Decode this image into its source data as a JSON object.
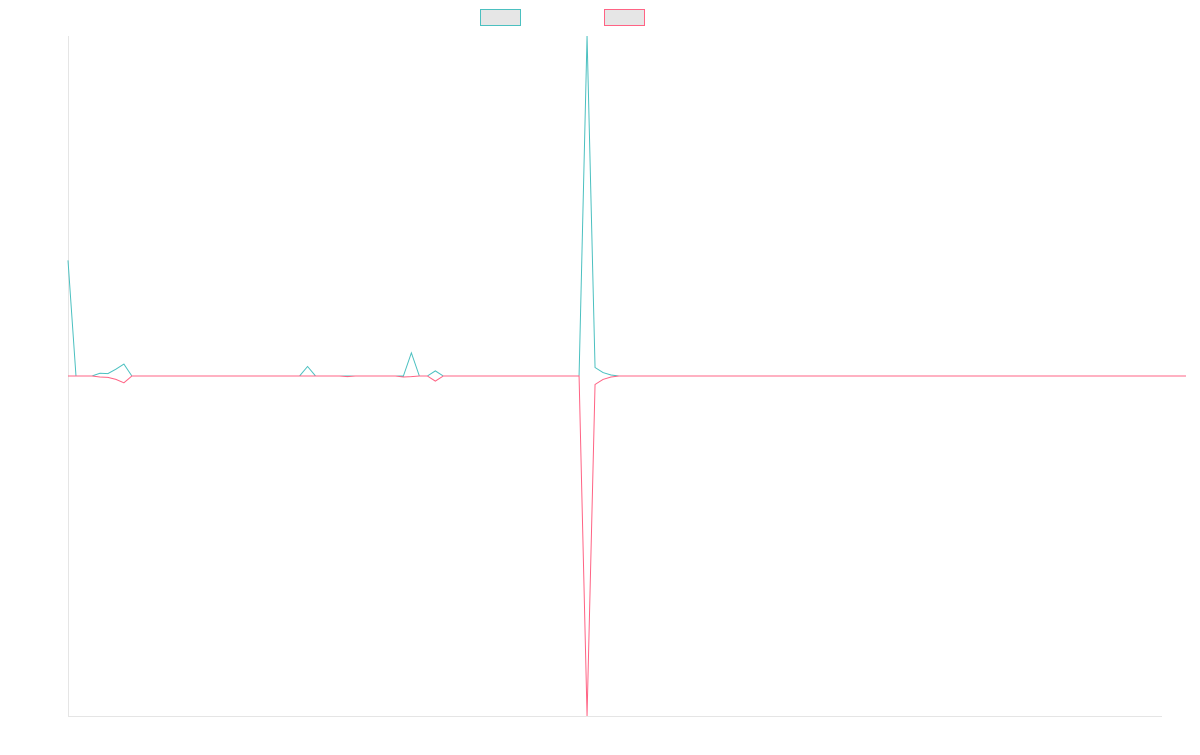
{
  "chart_data": {
    "type": "line",
    "title": "",
    "xlabel": "",
    "ylabel": "",
    "grid": false,
    "legend_position": "top-center",
    "x_count": 138,
    "ylim": [
      -1,
      1
    ],
    "series": [
      {
        "name": "",
        "color": "#4bc0c0",
        "fill": "#e6e6e6",
        "values": [
          0.34,
          0,
          0,
          0,
          0.008,
          0.007,
          0.02,
          0.035,
          0,
          0,
          0,
          0,
          0,
          0,
          0,
          0,
          0,
          0,
          0,
          0,
          0,
          0,
          0,
          0,
          0,
          0,
          0,
          0,
          0,
          0,
          0.028,
          0,
          0,
          0,
          0,
          0,
          0,
          0,
          0,
          0,
          0,
          0,
          0,
          0.068,
          0,
          0,
          0.015,
          0,
          0,
          0,
          0,
          0,
          0,
          0,
          0,
          0,
          0,
          0,
          0,
          0,
          0,
          0,
          0,
          0,
          0,
          1.0,
          0.025,
          0.01,
          0.003,
          0,
          0,
          0,
          0,
          0,
          0,
          0,
          0,
          0,
          0,
          0,
          0,
          0,
          0,
          0,
          0,
          0,
          0,
          0,
          0,
          0,
          0,
          0,
          0,
          0,
          0,
          0,
          0,
          0,
          0,
          0,
          0,
          0,
          0,
          0,
          0,
          0,
          0,
          0,
          0,
          0,
          0,
          0,
          0,
          0,
          0,
          0,
          0,
          0,
          0,
          0,
          0,
          0,
          0,
          0,
          0,
          0,
          0,
          0,
          0,
          0,
          0,
          0,
          0,
          0,
          0,
          0,
          0,
          0,
          0,
          0,
          0
        ]
      },
      {
        "name": "",
        "color": "#ff6384",
        "fill": "#e6e6e6",
        "values": [
          0,
          0,
          0,
          0,
          -0.003,
          -0.004,
          -0.01,
          -0.02,
          0,
          0,
          0,
          0,
          0,
          0,
          0,
          0,
          0,
          0,
          0,
          0,
          0,
          0,
          0,
          0,
          0,
          0,
          0,
          0,
          0,
          0,
          0,
          0,
          0,
          0,
          0,
          -0.002,
          0,
          0,
          0,
          0,
          0,
          0,
          -0.003,
          -0.002,
          0,
          0,
          -0.015,
          0,
          0,
          0,
          0,
          0,
          0,
          0,
          0,
          0,
          0,
          0,
          0,
          0,
          0,
          0,
          0,
          0,
          0,
          -1.0,
          -0.025,
          -0.01,
          -0.003,
          0,
          0,
          0,
          0,
          0,
          0,
          0,
          0,
          0,
          0,
          0,
          0,
          0,
          0,
          0,
          0,
          0,
          0,
          0,
          0,
          0,
          0,
          0,
          0,
          0,
          0,
          0,
          0,
          0,
          0,
          0,
          0,
          0,
          0,
          0,
          0,
          0,
          0,
          0,
          0,
          0,
          0,
          0,
          0,
          0,
          0,
          0,
          0,
          0,
          0,
          0,
          0,
          0,
          0,
          0,
          0,
          0,
          0,
          0,
          0,
          0,
          0,
          0,
          0,
          0,
          0,
          0,
          0,
          0,
          0,
          0,
          0
        ]
      }
    ]
  }
}
